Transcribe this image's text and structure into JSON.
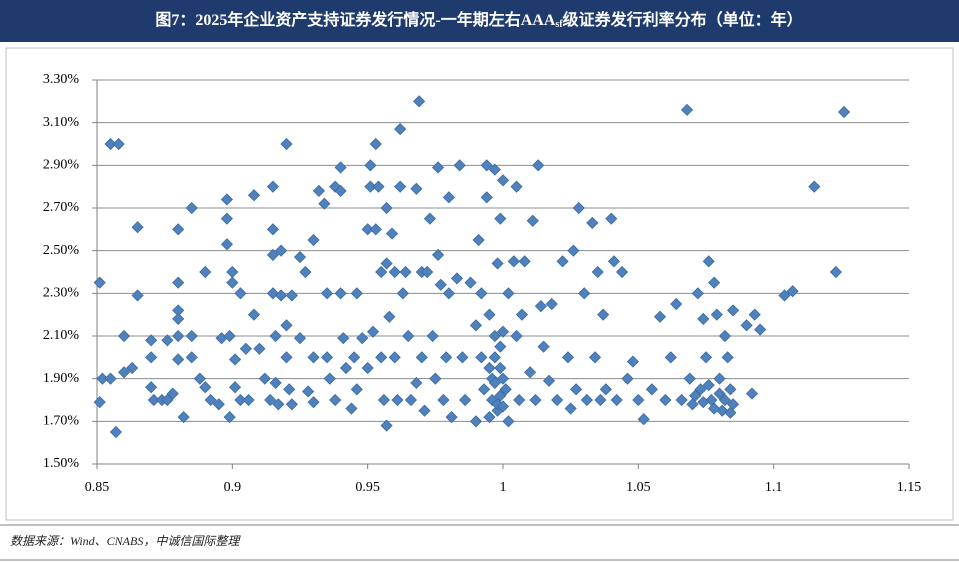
{
  "chart_data": {
    "type": "scatter",
    "title_parts": [
      "图7：2025年企业资产支持证券发行情况-一年期左右AAA",
      "sf",
      "级证券发行利率分布（单位：年）"
    ],
    "source": "数据来源：Wind、CNABS，中诚信国际整理",
    "color": "#4f81bd",
    "xlim": [
      0.85,
      1.15
    ],
    "xticks": [
      0.85,
      0.9,
      0.95,
      1,
      1.05,
      1.1,
      1.15
    ],
    "ylim": [
      1.5,
      3.3
    ],
    "yticks": [
      {
        "value": 1.5,
        "label": "1.50%"
      },
      {
        "value": 1.7,
        "label": "1.70%"
      },
      {
        "value": 1.9,
        "label": "1.90%"
      },
      {
        "value": 2.1,
        "label": "2.10%"
      },
      {
        "value": 2.3,
        "label": "2.30%"
      },
      {
        "value": 2.5,
        "label": "2.50%"
      },
      {
        "value": 2.7,
        "label": "2.70%"
      },
      {
        "value": 2.9,
        "label": "2.90%"
      },
      {
        "value": 3.1,
        "label": "3.10%"
      },
      {
        "value": 3.3,
        "label": "3.30%"
      }
    ],
    "grid": true,
    "x": [
      0.851,
      0.852,
      0.851,
      0.855,
      0.858,
      0.855,
      0.857,
      0.86,
      0.86,
      0.863,
      0.865,
      0.865,
      0.87,
      0.87,
      0.87,
      0.871,
      0.874,
      0.876,
      0.876,
      0.878,
      0.88,
      0.88,
      0.88,
      0.88,
      0.88,
      0.88,
      0.882,
      0.885,
      0.885,
      0.885,
      0.888,
      0.89,
      0.89,
      0.892,
      0.895,
      0.896,
      0.898,
      0.898,
      0.898,
      0.899,
      0.899,
      0.9,
      0.9,
      0.901,
      0.901,
      0.903,
      0.903,
      0.905,
      0.906,
      0.908,
      0.908,
      0.91,
      0.912,
      0.914,
      0.915,
      0.915,
      0.915,
      0.915,
      0.916,
      0.916,
      0.917,
      0.918,
      0.918,
      0.92,
      0.92,
      0.92,
      0.921,
      0.922,
      0.922,
      0.925,
      0.925,
      0.927,
      0.928,
      0.93,
      0.93,
      0.93,
      0.932,
      0.934,
      0.935,
      0.935,
      0.936,
      0.938,
      0.938,
      0.94,
      0.94,
      0.94,
      0.941,
      0.942,
      0.944,
      0.945,
      0.946,
      0.946,
      0.948,
      0.95,
      0.95,
      0.951,
      0.951,
      0.952,
      0.953,
      0.953,
      0.954,
      0.955,
      0.955,
      0.956,
      0.957,
      0.957,
      0.957,
      0.958,
      0.959,
      0.96,
      0.96,
      0.961,
      0.962,
      0.962,
      0.963,
      0.964,
      0.965,
      0.966,
      0.968,
      0.968,
      0.969,
      0.97,
      0.97,
      0.971,
      0.972,
      0.973,
      0.974,
      0.975,
      0.976,
      0.976,
      0.977,
      0.978,
      0.979,
      0.98,
      0.98,
      0.981,
      0.983,
      0.984,
      0.985,
      0.986,
      0.988,
      0.99,
      0.99,
      0.991,
      0.992,
      0.992,
      0.993,
      0.994,
      0.994,
      0.995,
      0.995,
      0.996,
      0.997,
      0.997,
      0.998,
      0.998,
      0.999,
      0.999,
      1.0,
      1.0,
      1.001,
      1.002,
      1.002,
      1.004,
      1.005,
      1.005,
      1.006,
      1.007,
      1.008,
      1.01,
      1.011,
      1.012,
      1.013,
      1.014,
      1.015,
      1.017,
      1.018,
      1.02,
      1.022,
      1.024,
      1.025,
      1.026,
      1.027,
      1.028,
      1.03,
      1.031,
      1.033,
      1.034,
      1.035,
      1.036,
      1.037,
      1.038,
      1.04,
      1.041,
      1.042,
      1.044,
      1.046,
      1.048,
      1.05,
      1.052,
      1.055,
      1.058,
      1.06,
      1.062,
      1.064,
      1.066,
      1.068,
      1.069,
      1.07,
      1.072,
      1.073,
      1.074,
      1.075,
      1.076,
      1.077,
      1.078,
      1.079,
      1.08,
      1.081,
      1.082,
      1.083,
      1.084,
      1.085,
      1.085,
      1.09,
      1.092,
      1.093,
      1.095,
      1.104,
      1.107,
      1.115,
      1.123,
      1.126,
      0.996,
      0.997,
      0.998,
      0.999,
      1.0,
      0.995,
      0.997,
      0.999,
      1.0,
      1.071,
      1.074,
      1.076,
      1.078,
      1.08,
      1.082,
      1.084
    ],
    "values": [
      2.35,
      1.9,
      1.79,
      3.0,
      3.0,
      1.9,
      1.65,
      2.1,
      1.93,
      1.95,
      2.29,
      2.61,
      2.08,
      2.0,
      1.86,
      1.8,
      1.8,
      1.8,
      2.08,
      1.83,
      2.6,
      2.35,
      2.22,
      2.18,
      2.1,
      1.99,
      1.72,
      2.7,
      2.1,
      2.0,
      1.9,
      2.4,
      1.86,
      1.8,
      1.78,
      2.09,
      2.74,
      2.65,
      2.53,
      2.1,
      1.72,
      2.4,
      2.35,
      1.99,
      1.86,
      2.3,
      1.8,
      2.04,
      1.8,
      2.76,
      2.2,
      2.04,
      1.9,
      1.8,
      2.8,
      2.6,
      2.48,
      2.3,
      2.1,
      1.88,
      1.78,
      2.5,
      2.29,
      3.0,
      2.15,
      2.0,
      1.85,
      2.29,
      1.78,
      2.47,
      2.09,
      2.4,
      1.84,
      2.55,
      2.0,
      1.79,
      2.78,
      2.72,
      2.3,
      2.0,
      1.9,
      2.8,
      1.8,
      2.89,
      2.78,
      2.3,
      2.09,
      1.95,
      1.76,
      2.0,
      2.3,
      1.85,
      2.09,
      2.6,
      1.95,
      2.9,
      2.8,
      2.12,
      2.6,
      3.0,
      2.8,
      2.4,
      2.0,
      1.8,
      2.7,
      2.44,
      1.68,
      2.19,
      2.58,
      2.4,
      2.0,
      1.8,
      3.07,
      2.8,
      2.3,
      2.4,
      2.1,
      1.8,
      2.79,
      1.88,
      3.2,
      2.4,
      2.0,
      1.75,
      2.4,
      2.65,
      2.1,
      1.9,
      2.89,
      2.48,
      2.34,
      1.8,
      2.0,
      2.75,
      2.3,
      1.72,
      2.37,
      2.9,
      2.0,
      1.8,
      2.35,
      2.15,
      1.7,
      2.55,
      2.3,
      2.0,
      1.85,
      2.9,
      2.75,
      2.2,
      1.95,
      1.8,
      2.88,
      2.1,
      2.44,
      1.75,
      2.65,
      2.05,
      1.9,
      2.83,
      1.85,
      2.3,
      1.7,
      2.45,
      2.1,
      2.8,
      1.8,
      2.2,
      2.45,
      1.93,
      2.64,
      1.8,
      2.9,
      2.24,
      2.05,
      1.89,
      2.25,
      1.8,
      2.45,
      2.0,
      1.76,
      2.5,
      1.85,
      2.7,
      2.3,
      1.8,
      2.63,
      2.0,
      2.4,
      1.8,
      2.2,
      1.85,
      2.65,
      2.45,
      1.8,
      2.4,
      1.9,
      1.98,
      1.8,
      1.71,
      1.85,
      2.19,
      1.8,
      2.0,
      2.25,
      1.8,
      3.16,
      1.9,
      1.78,
      2.3,
      1.85,
      2.18,
      2.0,
      2.45,
      1.8,
      2.35,
      2.2,
      1.9,
      1.75,
      2.1,
      2.0,
      1.85,
      2.22,
      1.78,
      2.15,
      1.83,
      2.2,
      2.13,
      2.29,
      2.31,
      2.8,
      2.4,
      3.15,
      1.9,
      2.0,
      1.78,
      1.82,
      2.12,
      1.72,
      1.88,
      1.95,
      1.77,
      1.82,
      1.79,
      1.87,
      1.76,
      1.83,
      1.8,
      1.74
    ]
  }
}
